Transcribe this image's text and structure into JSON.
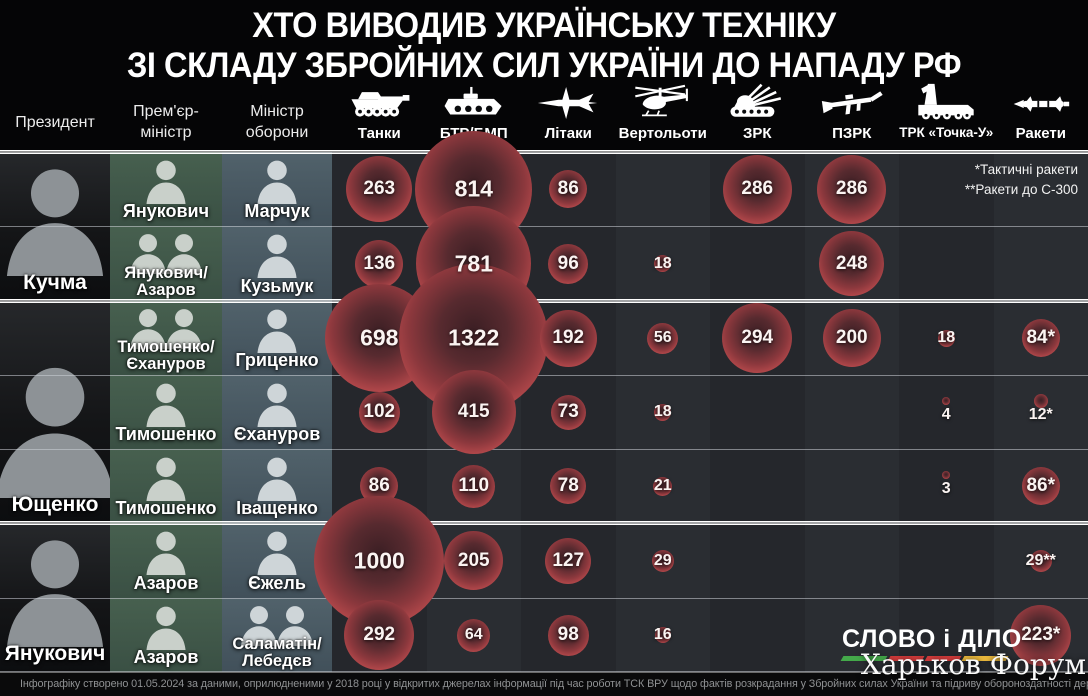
{
  "title": {
    "line1": "ХТО ВИВОДИВ УКРАЇНСЬКУ ТЕХНІКУ",
    "line2": "ЗІ СКЛАДУ ЗБРОЙНИХ СИЛ УКРАЇНИ ДО НАПАДУ РФ"
  },
  "columns": {
    "president": "Президент",
    "pm_line1": "Прем'єр-",
    "pm_line2": "міністр",
    "minister_line1": "Міністр",
    "minister_line2": "оборони",
    "equipment": [
      {
        "label": "Танки",
        "icon": "tank-icon"
      },
      {
        "label": "БТР/БМП",
        "icon": "apc-icon"
      },
      {
        "label": "Літаки",
        "icon": "jet-icon"
      },
      {
        "label": "Вертольоти",
        "icon": "helicopter-icon"
      },
      {
        "label": "ЗРК",
        "icon": "sam-icon"
      },
      {
        "label": "ПЗРК",
        "icon": "manpads-icon"
      },
      {
        "label": "ТРК «Точка-У»",
        "icon": "tochka-icon"
      },
      {
        "label": "Ракети",
        "icon": "missile-icon"
      }
    ]
  },
  "footnote": {
    "line1": "*Тактичні ракети",
    "line2": "**Ракети до С-300"
  },
  "chart_data": {
    "type": "table",
    "title": "ХТО ВИВОДИВ УКРАЇНСЬКУ ТЕХНІКУ ЗІ СКЛАДУ ЗБРОЙНИХ СИЛ УКРАЇНИ ДО НАПАДУ РФ",
    "columns": [
      "Танки",
      "БТР/БМП",
      "Літаки",
      "Вертольоти",
      "ЗРК",
      "ПЗРК",
      "ТРК «Точка-У»",
      "Ракети"
    ],
    "groups": [
      {
        "president": "Кучма",
        "rows": [
          {
            "pm": "Янукович",
            "minister": "Марчук",
            "values": [
              "263",
              "814",
              "86",
              "",
              "286",
              "286",
              "",
              ""
            ]
          },
          {
            "pm": "Янукович/Азаров",
            "minister": "Кузьмук",
            "values": [
              "136",
              "781",
              "96",
              "18",
              "",
              "248",
              "",
              ""
            ]
          }
        ]
      },
      {
        "president": "Ющенко",
        "rows": [
          {
            "pm": "Тимошенко/Єхануров",
            "minister": "Гриценко",
            "values": [
              "698",
              "1322",
              "192",
              "56",
              "294",
              "200",
              "18",
              "84*"
            ]
          },
          {
            "pm": "Тимошенко",
            "minister": "Єхануров",
            "values": [
              "102",
              "415",
              "73",
              "18",
              "",
              "",
              "4",
              "12*"
            ]
          },
          {
            "pm": "Тимошенко",
            "minister": "Іващенко",
            "values": [
              "86",
              "110",
              "78",
              "21",
              "",
              "",
              "3",
              "86*"
            ]
          }
        ]
      },
      {
        "president": "Янукович",
        "rows": [
          {
            "pm": "Азаров",
            "minister": "Єжель",
            "values": [
              "1000",
              "205",
              "127",
              "29",
              "",
              "",
              "",
              "29**"
            ]
          },
          {
            "pm": "Азаров",
            "minister": "Саламатін/Лебедєв",
            "values": [
              "292",
              "64",
              "98",
              "16",
              "",
              "",
              "",
              "223*"
            ]
          }
        ]
      }
    ]
  },
  "footer": "Інфографіку створено 01.05.2024 за даними, оприлюдненими у 2018 році у відкритих джерелах інформації під час роботи ТСК ВРУ щодо фактів розкрадання у Збройних силах України та підриву обороноздатності держави",
  "logo": "СЛОВО і ДІЛО",
  "watermark": "Харьков Форум",
  "colors": {
    "bubble_rim": "#d9605c",
    "bubble_core": "#3c1f24",
    "pm_cell_bg": "#41584a",
    "minister_cell_bg": "#4a5a63",
    "logo_green": "#44a94a",
    "logo_red": "#d23b3b",
    "logo_yellow": "#e7b63c"
  }
}
